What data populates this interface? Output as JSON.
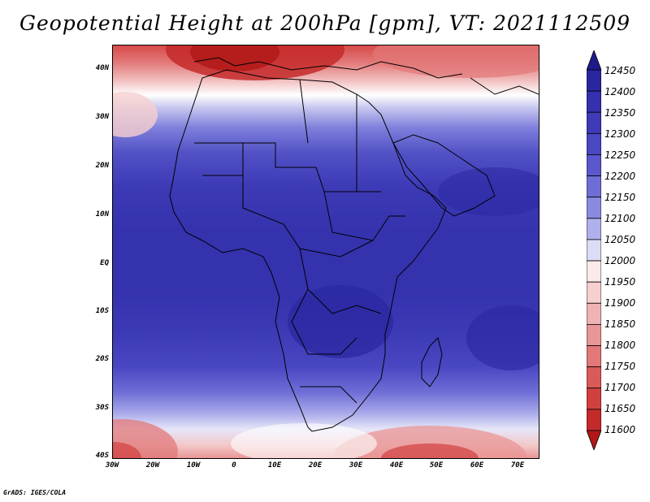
{
  "title": "Geopotential Height at 200hPa [gpm], VT: 2021112509",
  "footer": "GrADS: IGES/COLA",
  "lat_labels": [
    "40N",
    "30N",
    "20N",
    "10N",
    "EQ",
    "10S",
    "20S",
    "30S",
    "40S"
  ],
  "lon_labels": [
    "30W",
    "20W",
    "10W",
    "0",
    "10E",
    "20E",
    "30E",
    "40E",
    "50E",
    "60E",
    "70E"
  ],
  "colorbar": {
    "levels": [
      "12450",
      "12400",
      "12350",
      "12300",
      "12250",
      "12200",
      "12150",
      "12100",
      "12050",
      "12000",
      "11950",
      "11900",
      "11850",
      "11800",
      "11750",
      "11700",
      "11650",
      "11600"
    ],
    "colors": [
      "#1e1a8c",
      "#2a26a0",
      "#3430ae",
      "#3e3ab8",
      "#4a47c2",
      "#5a58cc",
      "#6e6ed6",
      "#8a8ae0",
      "#b0b0ec",
      "#dcdcf6",
      "#fbeaea",
      "#f6cfcf",
      "#efb3b3",
      "#e99696",
      "#e27878",
      "#da5a5a",
      "#d14040",
      "#c42a2a",
      "#b01818"
    ]
  }
}
